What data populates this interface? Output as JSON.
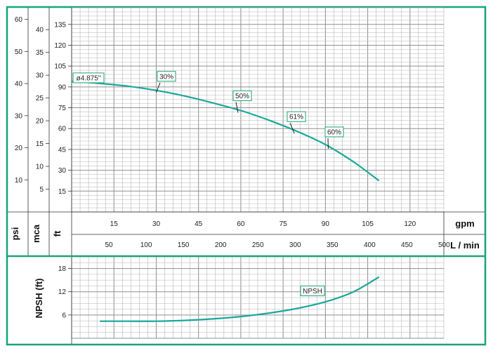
{
  "colors": {
    "frame": "#1aa37a",
    "curve": "#1aa89a",
    "grid": "#b5b5b5",
    "label_border": "#1aa37a"
  },
  "chart_data": [
    {
      "type": "line",
      "name": "head-curve",
      "xlabel_primary": "gpm",
      "xlabel_secondary": "L / min",
      "x_ticks_gpm": [
        15,
        30,
        45,
        60,
        75,
        90,
        105,
        120
      ],
      "x_ticks_lmin": [
        50,
        100,
        150,
        200,
        250,
        300,
        350,
        400,
        450,
        500
      ],
      "xlim_gpm": [
        0,
        132
      ],
      "y_axes": [
        {
          "label": "psi",
          "ticks": [
            10,
            20,
            30,
            40,
            50,
            60
          ]
        },
        {
          "label": "mca",
          "ticks": [
            5,
            10,
            15,
            20,
            25,
            30,
            35,
            40
          ]
        },
        {
          "label": "ft",
          "ticks": [
            15,
            30,
            45,
            60,
            75,
            90,
            105,
            120,
            135
          ]
        }
      ],
      "ylim_ft": [
        0,
        147
      ],
      "grid": true,
      "series": [
        {
          "name": "ø4.875\"",
          "x": [
            0,
            10,
            20,
            30,
            40,
            50,
            60,
            70,
            80,
            90,
            100,
            109
          ],
          "y": [
            94,
            92.5,
            90.5,
            87.5,
            83.5,
            78.5,
            73,
            66,
            58,
            48.5,
            36,
            22.5
          ]
        }
      ],
      "annotations": [
        {
          "text": "ø4.875\"",
          "x": 0,
          "y": 94
        },
        {
          "text": "30%",
          "x": 31,
          "y": 87
        },
        {
          "text": "50%",
          "x": 60,
          "y": 73
        },
        {
          "text": "61%",
          "x": 80,
          "y": 58
        },
        {
          "text": "60%",
          "x": 92,
          "y": 47
        }
      ]
    },
    {
      "type": "line",
      "name": "npsh-curve",
      "ylabel": "NPSH (ft)",
      "y_ticks": [
        6,
        12,
        18
      ],
      "ylim": [
        0,
        21
      ],
      "grid": true,
      "series": [
        {
          "name": "NPSH",
          "x": [
            10,
            20,
            30,
            40,
            50,
            60,
            70,
            80,
            90,
            100,
            109
          ],
          "y": [
            4.4,
            4.4,
            4.4,
            4.6,
            5.0,
            5.6,
            6.5,
            7.7,
            9.4,
            12.0,
            15.8
          ]
        }
      ],
      "annotations": [
        {
          "text": "NPSH",
          "x": 86,
          "y": 11.5
        }
      ]
    }
  ]
}
